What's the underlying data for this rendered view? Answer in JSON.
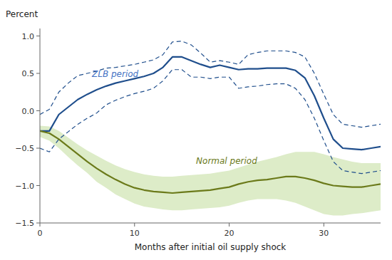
{
  "chart_data": {
    "type": "line",
    "xlabel": "Months after initial oil supply shock",
    "ylabel": "Percent",
    "xlim": [
      0,
      36
    ],
    "xticks": [
      0,
      10,
      20,
      30
    ],
    "ylim": [
      -1.5,
      1.1
    ],
    "yticks": [
      {
        "value": -1.5,
        "label": "−1.5"
      },
      {
        "value": -1.0,
        "label": "−1.0"
      },
      {
        "value": -0.5,
        "label": "−0.5"
      },
      {
        "value": 0,
        "label": "0.0"
      },
      {
        "value": 0.5,
        "label": "0.5"
      },
      {
        "value": 1.0,
        "label": "1.0"
      }
    ],
    "grid": false,
    "x": [
      0,
      1,
      2,
      3,
      4,
      5,
      6,
      7,
      8,
      9,
      10,
      11,
      12,
      13,
      14,
      15,
      16,
      17,
      18,
      19,
      20,
      21,
      22,
      23,
      24,
      25,
      26,
      27,
      28,
      29,
      30,
      31,
      32,
      33,
      34,
      35,
      36
    ],
    "series": [
      {
        "type": "band",
        "color": "#ddecc8",
        "lower": [
          -0.35,
          -0.4,
          -0.5,
          -0.62,
          -0.73,
          -0.83,
          -0.95,
          -1.03,
          -1.12,
          -1.18,
          -1.24,
          -1.28,
          -1.3,
          -1.32,
          -1.33,
          -1.33,
          -1.32,
          -1.31,
          -1.3,
          -1.29,
          -1.27,
          -1.23,
          -1.2,
          -1.18,
          -1.18,
          -1.18,
          -1.2,
          -1.23,
          -1.28,
          -1.33,
          -1.38,
          -1.4,
          -1.4,
          -1.38,
          -1.37,
          -1.35,
          -1.33
        ],
        "upper": [
          -0.2,
          -0.21,
          -0.27,
          -0.36,
          -0.45,
          -0.53,
          -0.6,
          -0.67,
          -0.73,
          -0.78,
          -0.82,
          -0.85,
          -0.87,
          -0.88,
          -0.88,
          -0.87,
          -0.86,
          -0.85,
          -0.84,
          -0.82,
          -0.8,
          -0.76,
          -0.72,
          -0.68,
          -0.65,
          -0.62,
          -0.58,
          -0.55,
          -0.55,
          -0.55,
          -0.58,
          -0.62,
          -0.65,
          -0.68,
          -0.7,
          -0.7,
          -0.7
        ]
      },
      {
        "type": "line",
        "color": "#1f4e8c",
        "line_style": "dashed",
        "values": [
          -0.05,
          0.02,
          0.25,
          0.37,
          0.47,
          0.5,
          0.53,
          0.57,
          0.58,
          0.6,
          0.62,
          0.65,
          0.68,
          0.75,
          0.92,
          0.93,
          0.88,
          0.77,
          0.65,
          0.67,
          0.65,
          0.62,
          0.75,
          0.78,
          0.8,
          0.8,
          0.8,
          0.78,
          0.72,
          0.5,
          0.22,
          -0.05,
          -0.18,
          -0.2,
          -0.22,
          -0.2,
          -0.18
        ]
      },
      {
        "type": "line",
        "color": "#1f4e8c",
        "line_style": "dashed",
        "values": [
          -0.5,
          -0.55,
          -0.38,
          -0.28,
          -0.18,
          -0.1,
          -0.03,
          0.08,
          0.14,
          0.19,
          0.23,
          0.26,
          0.3,
          0.4,
          0.55,
          0.55,
          0.45,
          0.45,
          0.43,
          0.45,
          0.45,
          0.3,
          0.32,
          0.33,
          0.35,
          0.36,
          0.36,
          0.3,
          0.15,
          -0.1,
          -0.4,
          -0.68,
          -0.8,
          -0.82,
          -0.84,
          -0.82,
          -0.8
        ]
      },
      {
        "type": "line",
        "color": "#1f4e8c",
        "line_style": "solid",
        "values": [
          -0.27,
          -0.27,
          -0.05,
          0.05,
          0.15,
          0.22,
          0.28,
          0.33,
          0.37,
          0.4,
          0.43,
          0.46,
          0.5,
          0.58,
          0.72,
          0.72,
          0.67,
          0.62,
          0.58,
          0.61,
          0.58,
          0.55,
          0.56,
          0.56,
          0.57,
          0.57,
          0.57,
          0.54,
          0.44,
          0.2,
          -0.1,
          -0.38,
          -0.5,
          -0.51,
          -0.52,
          -0.5,
          -0.48
        ]
      },
      {
        "type": "line",
        "color": "#6b7a1a",
        "line_style": "solid",
        "values": [
          -0.27,
          -0.3,
          -0.38,
          -0.48,
          -0.58,
          -0.68,
          -0.77,
          -0.85,
          -0.92,
          -0.98,
          -1.03,
          -1.06,
          -1.08,
          -1.09,
          -1.1,
          -1.09,
          -1.08,
          -1.07,
          -1.06,
          -1.04,
          -1.02,
          -0.98,
          -0.95,
          -0.93,
          -0.92,
          -0.9,
          -0.88,
          -0.88,
          -0.9,
          -0.93,
          -0.97,
          -1.0,
          -1.01,
          -1.02,
          -1.02,
          -1.0,
          -0.98
        ]
      }
    ],
    "annotations": [
      {
        "text": "ZLB period",
        "x": 5.5,
        "y": 0.42,
        "color": "#4472c4"
      },
      {
        "text": "Normal period",
        "x": 16.5,
        "y": -0.6,
        "color": "#6b7a1a"
      }
    ]
  }
}
